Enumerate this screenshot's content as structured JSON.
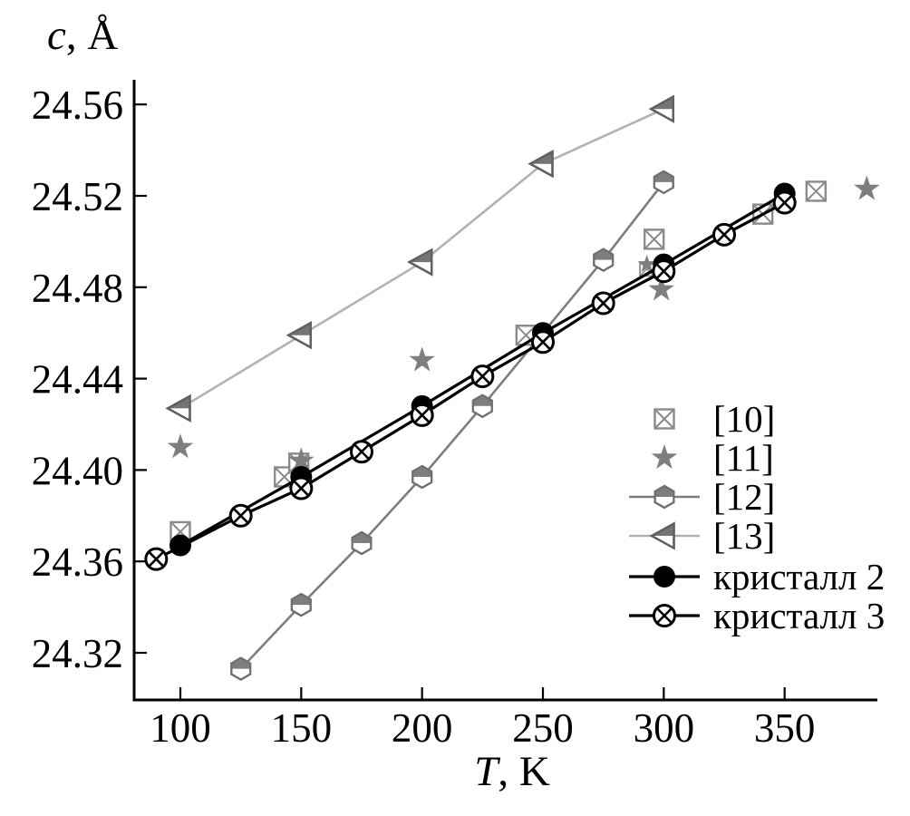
{
  "page": {
    "background": "#ffffff"
  },
  "axes": {
    "y_title": {
      "var": "c",
      "suffix": ", Å"
    },
    "x_title": {
      "var": "T",
      "suffix": ", K"
    },
    "x_tick_labels": [
      "100",
      "150",
      "200",
      "250",
      "300",
      "350"
    ],
    "y_tick_labels": [
      "24.32",
      "24.36",
      "24.40",
      "24.44",
      "24.48",
      "24.52",
      "24.56"
    ]
  },
  "chart_data": {
    "type": "line",
    "title": "",
    "xlabel": "T, K",
    "ylabel": "c, Å",
    "xlim": [
      81,
      395
    ],
    "ylim": [
      24.299,
      24.571
    ],
    "x_ticks": [
      100,
      150,
      200,
      250,
      300,
      350
    ],
    "y_ticks": [
      24.32,
      24.36,
      24.4,
      24.44,
      24.48,
      24.52,
      24.56
    ],
    "grid": false,
    "legend_position": "inside lower-right",
    "series": [
      {
        "name": "[10]",
        "type": "scatter",
        "marker": "square-x",
        "color": "#8a8a8a",
        "points": [
          [
            100,
            24.373
          ],
          [
            143,
            24.397
          ],
          [
            149,
            24.403
          ],
          [
            243,
            24.459
          ],
          [
            293,
            24.488
          ],
          [
            296,
            24.501
          ],
          [
            341,
            24.512
          ],
          [
            363,
            24.522
          ]
        ],
        "small_points": [
          4
        ]
      },
      {
        "name": "[11]",
        "type": "scatter",
        "marker": "star",
        "color": "#7e7e7e",
        "points": [
          [
            100,
            24.41
          ],
          [
            150,
            24.404
          ],
          [
            200,
            24.448
          ],
          [
            293,
            24.49
          ],
          [
            299,
            24.479
          ],
          [
            384,
            24.523
          ]
        ],
        "small_points": [
          3
        ]
      },
      {
        "name": "[12]",
        "type": "line+scatter",
        "marker": "hex-half",
        "color": "#6f6f6f",
        "line_color": "#7d7d7d",
        "fill": "#7e7e7e",
        "points": [
          [
            125,
            24.313
          ],
          [
            150,
            24.341
          ],
          [
            175,
            24.368
          ],
          [
            200,
            24.397
          ],
          [
            225,
            24.428
          ],
          [
            275,
            24.492
          ],
          [
            300,
            24.526
          ]
        ]
      },
      {
        "name": "[13]",
        "type": "line+scatter",
        "marker": "triangle-left-half",
        "color": "#606060",
        "line_color": "#b2b2b2",
        "fill": "#757575",
        "points": [
          [
            100,
            24.427
          ],
          [
            150,
            24.459
          ],
          [
            200,
            24.491
          ],
          [
            250,
            24.534
          ],
          [
            300,
            24.558
          ]
        ]
      },
      {
        "name": "кристалл 2",
        "type": "line+scatter",
        "marker": "circle-filled",
        "color": "#000000",
        "points": [
          [
            100,
            24.367
          ],
          [
            150,
            24.397
          ],
          [
            200,
            24.428
          ],
          [
            250,
            24.46
          ],
          [
            300,
            24.49
          ],
          [
            350,
            24.521
          ]
        ]
      },
      {
        "name": "кристалл 3",
        "type": "line+scatter",
        "marker": "circle-x",
        "color": "#000000",
        "points": [
          [
            90,
            24.361
          ],
          [
            125,
            24.38
          ],
          [
            150,
            24.392
          ],
          [
            175,
            24.408
          ],
          [
            200,
            24.424
          ],
          [
            225,
            24.441
          ],
          [
            250,
            24.456
          ],
          [
            275,
            24.473
          ],
          [
            300,
            24.487
          ],
          [
            325,
            24.503
          ],
          [
            350,
            24.517
          ]
        ]
      }
    ]
  }
}
